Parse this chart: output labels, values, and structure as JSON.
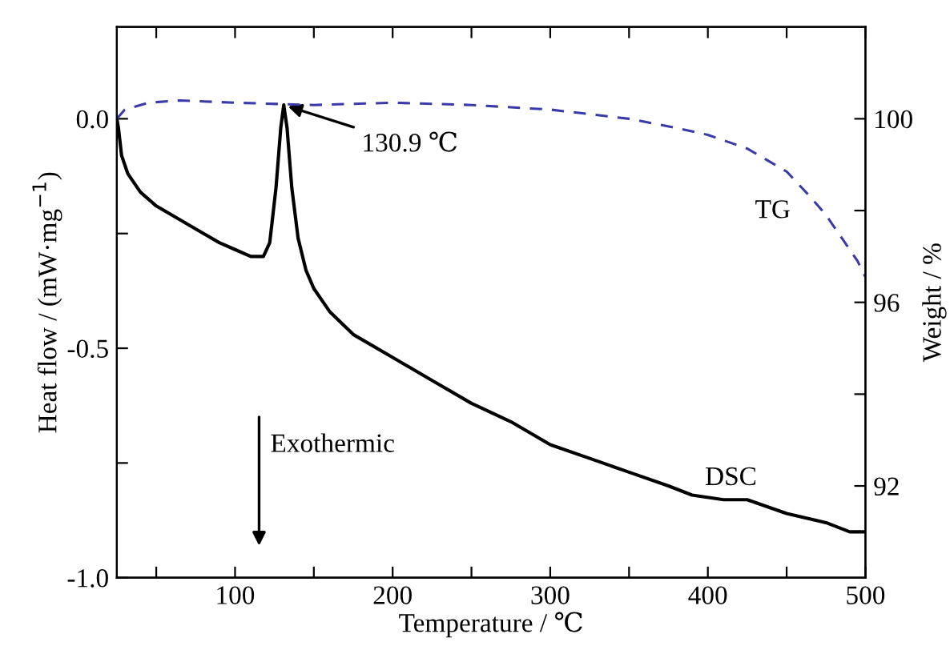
{
  "chart_data": {
    "type": "line",
    "xlabel": "Temperature / ℃",
    "ylabel": "Heat flow / (mW·mg$^{−1}$)",
    "y2label": "Weight / %",
    "xlim": [
      25,
      500
    ],
    "xticks": [
      {
        "value": 50,
        "label": null
      },
      100,
      {
        "value": 150,
        "label": null
      },
      200,
      {
        "value": 250,
        "label": null
      },
      300,
      {
        "value": 350,
        "label": null
      },
      400,
      {
        "value": 450,
        "label": null
      },
      500
    ],
    "ylim": [
      -1.0,
      0.2
    ],
    "yticks": [
      {
        "value": -1.0,
        "label": "-1.0"
      },
      {
        "value": -0.75,
        "label": null
      },
      {
        "value": -0.5,
        "label": "-0.5"
      },
      {
        "value": -0.25,
        "label": null
      },
      {
        "value": 0.0,
        "label": "0.0"
      }
    ],
    "y2lim": [
      90,
      102
    ],
    "y2ticks": [
      92,
      {
        "value": 94,
        "label": null
      },
      96,
      {
        "value": 98,
        "label": null
      },
      100
    ],
    "grid": false,
    "legend": false,
    "series": [
      {
        "color": "#000000",
        "line_style": "solid",
        "x": [
          25,
          26,
          28,
          32,
          40,
          50,
          60,
          70,
          80,
          90,
          100,
          110,
          118,
          122,
          126,
          129,
          130.9,
          133,
          136,
          140,
          145,
          150,
          160,
          175,
          200,
          225,
          250,
          275,
          300,
          325,
          350,
          375,
          390,
          410,
          425,
          450,
          475,
          490,
          500
        ],
        "values": [
          0.0,
          -0.02,
          -0.08,
          -0.12,
          -0.16,
          -0.19,
          -0.21,
          -0.23,
          -0.25,
          -0.27,
          -0.285,
          -0.3,
          -0.3,
          -0.27,
          -0.15,
          -0.02,
          0.03,
          -0.02,
          -0.15,
          -0.26,
          -0.33,
          -0.37,
          -0.42,
          -0.47,
          -0.52,
          -0.57,
          -0.62,
          -0.66,
          -0.71,
          -0.74,
          -0.77,
          -0.8,
          -0.82,
          -0.83,
          -0.83,
          -0.86,
          -0.88,
          -0.9,
          -0.9
        ]
      },
      {
        "color": "#3a3aa8",
        "line_style": "dashed",
        "axis": "y2",
        "x": [
          25,
          30,
          45,
          65,
          100,
          150,
          200,
          250,
          300,
          350,
          380,
          400,
          425,
          450,
          465,
          475,
          485,
          495,
          500
        ],
        "values": [
          100.0,
          100.2,
          100.35,
          100.4,
          100.35,
          100.3,
          100.35,
          100.3,
          100.2,
          100.0,
          99.8,
          99.65,
          99.35,
          98.85,
          98.3,
          97.9,
          97.4,
          96.9,
          96.55
        ]
      }
    ],
    "annotations": [
      {
        "text": "130.9 ℃",
        "x": 130.9,
        "y": 0.03
      },
      "TG",
      "DSC",
      "Exothermic"
    ]
  }
}
